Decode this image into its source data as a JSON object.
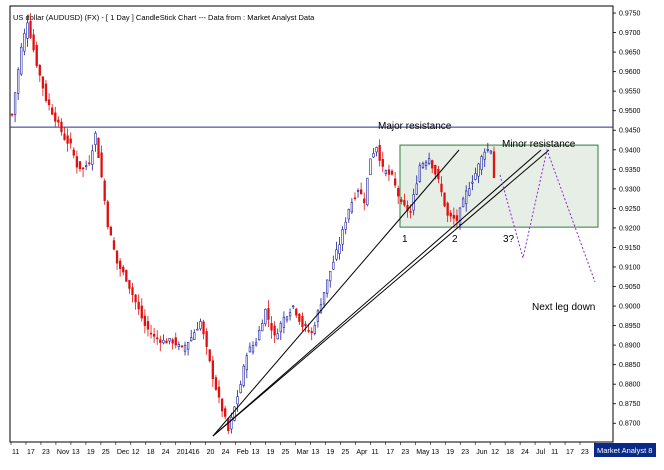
{
  "chart_data": {
    "type": "candlestick",
    "title": "US dollar (AUDUSD) (FX) -  [ 1 Day ] CandleStick Chart --- Data from : Market Analyst Data",
    "watermark": "Market Analyst 8",
    "ylim": [
      0.8652,
      0.9768
    ],
    "y_ticks": [
      "0.9750",
      "0.9700",
      "0.9650",
      "0.9600",
      "0.9550",
      "0.9500",
      "0.9450",
      "0.9400",
      "0.9350",
      "0.9300",
      "0.9250",
      "0.9200",
      "0.9150",
      "0.9100",
      "0.9050",
      "0.9000",
      "0.8950",
      "0.8900",
      "0.8850",
      "0.8800",
      "0.8750",
      "0.8700"
    ],
    "x_date_labels": [
      "11",
      "17",
      "23",
      "Nov",
      "13",
      "19",
      "25",
      "Dec",
      "12",
      "18",
      "24",
      "2014",
      "16",
      "20",
      "24",
      "Feb",
      "13",
      "19",
      "25",
      "Mar",
      "13",
      "19",
      "25",
      "Apr",
      "11",
      "17",
      "23",
      "May",
      "13",
      "19",
      "23",
      "Jun",
      "12",
      "18",
      "24",
      "Jul",
      "11",
      "17",
      "23",
      "Au"
    ],
    "price_path": [
      {
        "i": 0,
        "p": 0.949
      },
      {
        "i": 3,
        "p": 0.966
      },
      {
        "i": 5,
        "p": 0.973
      },
      {
        "i": 8,
        "p": 0.962
      },
      {
        "i": 11,
        "p": 0.953
      },
      {
        "i": 14,
        "p": 0.948
      },
      {
        "i": 17,
        "p": 0.943
      },
      {
        "i": 19,
        "p": 0.941
      },
      {
        "i": 21,
        "p": 0.936
      },
      {
        "i": 23,
        "p": 0.935
      },
      {
        "i": 25,
        "p": 0.937
      },
      {
        "i": 27,
        "p": 0.944
      },
      {
        "i": 29,
        "p": 0.933
      },
      {
        "i": 31,
        "p": 0.921
      },
      {
        "i": 34,
        "p": 0.911
      },
      {
        "i": 37,
        "p": 0.907
      },
      {
        "i": 40,
        "p": 0.901
      },
      {
        "i": 43,
        "p": 0.895
      },
      {
        "i": 46,
        "p": 0.892
      },
      {
        "i": 49,
        "p": 0.891
      },
      {
        "i": 52,
        "p": 0.891
      },
      {
        "i": 55,
        "p": 0.889
      },
      {
        "i": 58,
        "p": 0.892
      },
      {
        "i": 61,
        "p": 0.896
      },
      {
        "i": 63,
        "p": 0.889
      },
      {
        "i": 65,
        "p": 0.882
      },
      {
        "i": 67,
        "p": 0.876
      },
      {
        "i": 69,
        "p": 0.871
      },
      {
        "i": 70,
        "p": 0.868
      },
      {
        "i": 72,
        "p": 0.874
      },
      {
        "i": 74,
        "p": 0.88
      },
      {
        "i": 76,
        "p": 0.888
      },
      {
        "i": 79,
        "p": 0.891
      },
      {
        "i": 82,
        "p": 0.899
      },
      {
        "i": 85,
        "p": 0.892
      },
      {
        "i": 88,
        "p": 0.897
      },
      {
        "i": 91,
        "p": 0.9
      },
      {
        "i": 94,
        "p": 0.895
      },
      {
        "i": 97,
        "p": 0.893
      },
      {
        "i": 100,
        "p": 0.901
      },
      {
        "i": 103,
        "p": 0.909
      },
      {
        "i": 106,
        "p": 0.916
      },
      {
        "i": 109,
        "p": 0.925
      },
      {
        "i": 112,
        "p": 0.93
      },
      {
        "i": 114,
        "p": 0.927
      },
      {
        "i": 116,
        "p": 0.938
      },
      {
        "i": 118,
        "p": 0.941
      },
      {
        "i": 120,
        "p": 0.935
      },
      {
        "i": 123,
        "p": 0.933
      },
      {
        "i": 126,
        "p": 0.926
      },
      {
        "i": 129,
        "p": 0.924
      },
      {
        "i": 132,
        "p": 0.936
      },
      {
        "i": 135,
        "p": 0.938
      },
      {
        "i": 138,
        "p": 0.932
      },
      {
        "i": 141,
        "p": 0.923
      },
      {
        "i": 144,
        "p": 0.922
      },
      {
        "i": 147,
        "p": 0.929
      },
      {
        "i": 150,
        "p": 0.934
      },
      {
        "i": 153,
        "p": 0.94
      },
      {
        "i": 155,
        "p": 0.94
      },
      {
        "i": 156,
        "p": 0.933
      }
    ],
    "annotations": {
      "major_resistance": {
        "label": "Major resistance",
        "price": 0.9458
      },
      "minor_resistance": {
        "label": "Minor resistance"
      },
      "box_top": 0.9412,
      "box_bottom": 0.9202,
      "point_labels": [
        "1",
        "2",
        "3?"
      ],
      "projection_label": "Next leg down"
    }
  }
}
